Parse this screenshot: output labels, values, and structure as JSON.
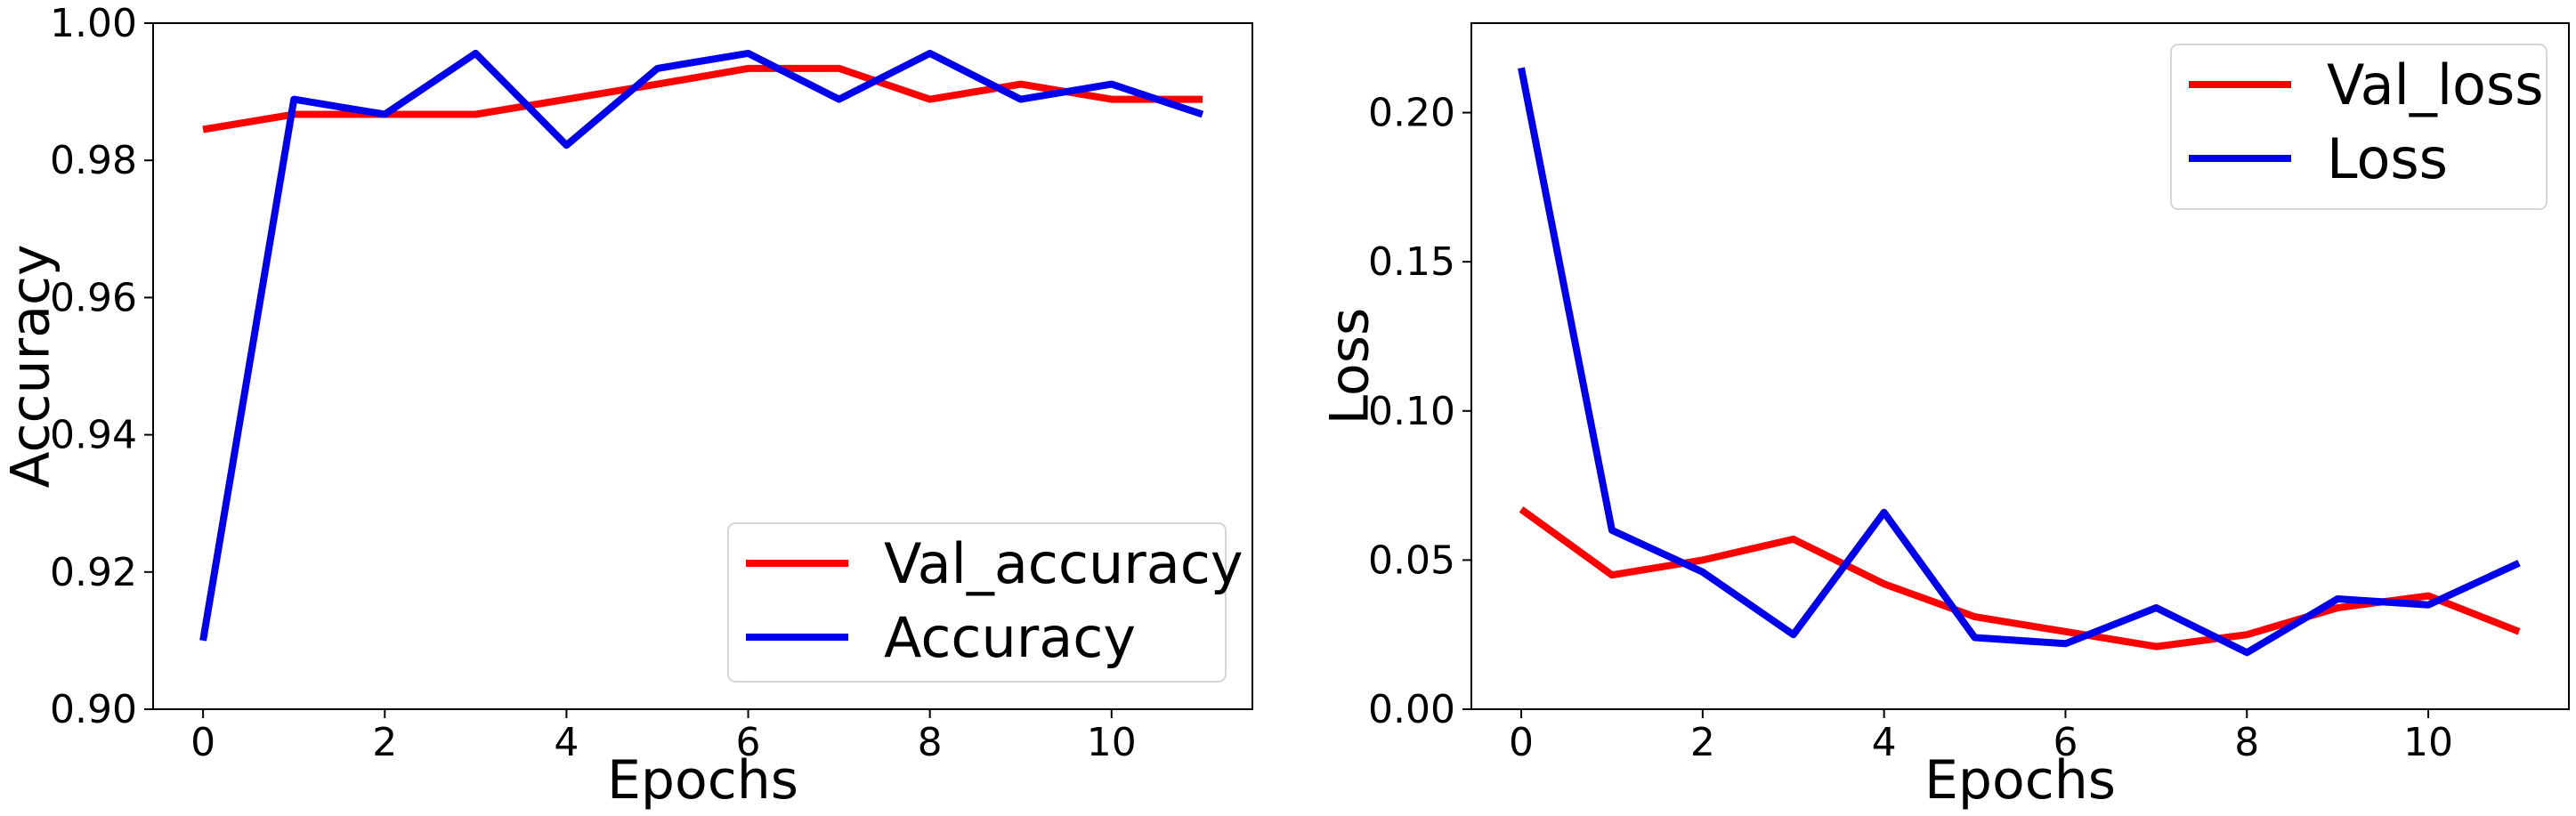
{
  "chart_data": [
    {
      "type": "line",
      "title": "",
      "xlabel": "Epochs",
      "ylabel": "Accuracy",
      "xlim": [
        -0.55,
        11.55
      ],
      "ylim": [
        0.9,
        1.0
      ],
      "x": [
        0,
        1,
        2,
        3,
        4,
        5,
        6,
        7,
        8,
        9,
        10,
        11
      ],
      "xticks": [
        0,
        2,
        4,
        6,
        8,
        10
      ],
      "xtick_labels": [
        "0",
        "2",
        "4",
        "6",
        "8",
        "10"
      ],
      "yticks": [
        0.9,
        0.92,
        0.94,
        0.96,
        0.98,
        1.0
      ],
      "ytick_labels": [
        "0.90",
        "0.92",
        "0.94",
        "0.96",
        "0.98",
        "1.00"
      ],
      "grid": false,
      "legend_position": "lower-right",
      "series": [
        {
          "name": "Val_accuracy",
          "color": "#ff0000",
          "values": [
            0.9845,
            0.9867,
            0.9867,
            0.9867,
            0.9889,
            0.9911,
            0.9934,
            0.9934,
            0.9889,
            0.9911,
            0.9889,
            0.9889
          ]
        },
        {
          "name": "Accuracy",
          "color": "#0000ee",
          "values": [
            0.91,
            0.9889,
            0.9867,
            0.9956,
            0.9822,
            0.9934,
            0.9956,
            0.9889,
            0.9956,
            0.9889,
            0.9911,
            0.9867
          ]
        }
      ]
    },
    {
      "type": "line",
      "title": "",
      "xlabel": "Epochs",
      "ylabel": "Loss",
      "xlim": [
        -0.55,
        11.55
      ],
      "ylim": [
        0.0,
        0.23
      ],
      "x": [
        0,
        1,
        2,
        3,
        4,
        5,
        6,
        7,
        8,
        9,
        10,
        11
      ],
      "xticks": [
        0,
        2,
        4,
        6,
        8,
        10
      ],
      "xtick_labels": [
        "0",
        "2",
        "4",
        "6",
        "8",
        "10"
      ],
      "yticks": [
        0.0,
        0.05,
        0.1,
        0.15,
        0.2
      ],
      "ytick_labels": [
        "0.00",
        "0.05",
        "0.10",
        "0.15",
        "0.20"
      ],
      "grid": false,
      "legend_position": "upper-right",
      "series": [
        {
          "name": "Val_loss",
          "color": "#ff0000",
          "values": [
            0.067,
            0.045,
            0.05,
            0.057,
            0.042,
            0.031,
            0.026,
            0.021,
            0.025,
            0.034,
            0.038,
            0.026
          ]
        },
        {
          "name": "Loss",
          "color": "#0000ee",
          "values": [
            0.215,
            0.06,
            0.046,
            0.025,
            0.066,
            0.024,
            0.022,
            0.034,
            0.019,
            0.037,
            0.035,
            0.049
          ]
        }
      ]
    }
  ]
}
